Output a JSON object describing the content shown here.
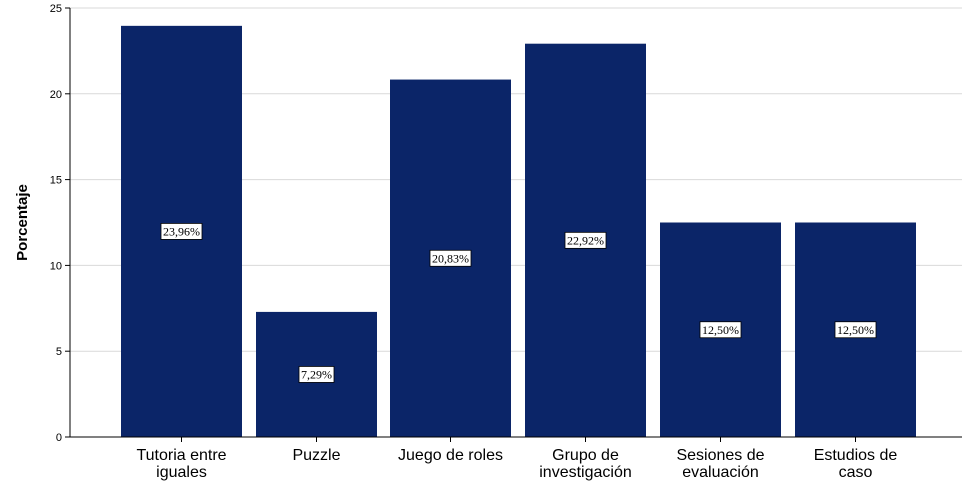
{
  "chart_data": {
    "type": "bar",
    "categories": [
      [
        "Tutoria entre",
        "iguales"
      ],
      [
        "Puzzle"
      ],
      [
        "Juego de roles"
      ],
      [
        "Grupo de",
        "investigación"
      ],
      [
        "Sesiones de",
        "evaluación"
      ],
      [
        "Estudios de",
        "caso"
      ]
    ],
    "values": [
      23.96,
      7.29,
      20.83,
      22.92,
      12.5,
      12.5
    ],
    "data_labels": [
      "23,96%",
      "7,29%",
      "20,83%",
      "22,92%",
      "12,50%",
      "12,50%"
    ],
    "xlabel": "",
    "ylabel": "Porcentaje",
    "ylim": [
      0,
      25
    ],
    "yticks": [
      0,
      5,
      10,
      15,
      20,
      25
    ],
    "grid": true,
    "legend": "none",
    "colors": {
      "bar": "#0b2568",
      "grid": "#d9d9d9",
      "axis": "#000000",
      "label_box": "#ffffff"
    }
  }
}
